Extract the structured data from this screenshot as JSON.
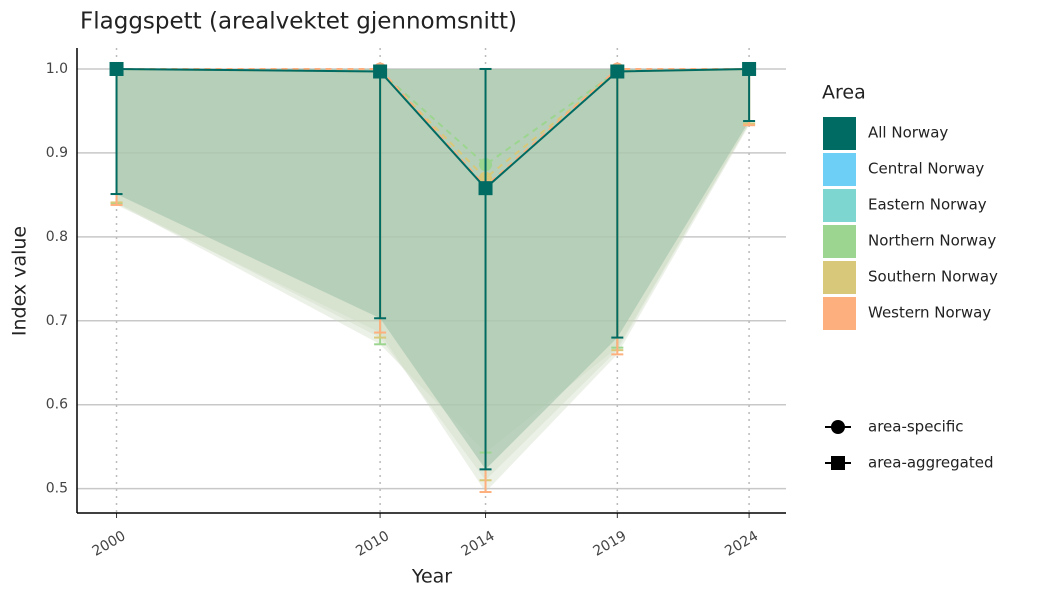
{
  "chart_data": {
    "type": "line",
    "title": "Flaggspett (arealvektet gjennomsnitt)",
    "x_label": "Year",
    "y_label": "Index value",
    "x": [
      2000,
      2010,
      2014,
      2019,
      2024
    ],
    "xlim": [
      1998.5,
      2025.4
    ],
    "xticks": [
      2000,
      2010,
      2014,
      2019,
      2024
    ],
    "ylim": [
      0.471,
      1.025
    ],
    "yticks": [
      0.5,
      0.6,
      0.7,
      0.8,
      0.9,
      {
        "value": 1,
        "label": "1.0"
      }
    ],
    "grid": true,
    "legend_title": "Area",
    "shape_legend": [
      "area-specific",
      "area-aggregated"
    ],
    "series": [
      {
        "name": "All Norway",
        "color": "#006b62",
        "shape": "area-aggregated",
        "values": [
          1.0,
          0.997,
          0.858,
          0.997,
          1.0
        ],
        "lower": [
          0.851,
          0.703,
          0.523,
          0.68,
          0.938
        ],
        "upper": [
          1.0,
          1.0,
          1.0,
          1.0,
          1.0
        ]
      },
      {
        "name": "Central Norway",
        "color": "#6ecff6",
        "shape": "area-specific",
        "values": [
          null,
          null,
          null,
          null,
          null
        ],
        "lower": [
          null,
          null,
          null,
          null,
          null
        ],
        "upper": [
          null,
          null,
          null,
          null,
          null
        ]
      },
      {
        "name": "Eastern Norway",
        "color": "#7dd6cf",
        "shape": "area-specific",
        "values": [
          null,
          null,
          null,
          null,
          null
        ],
        "lower": [
          null,
          null,
          null,
          null,
          null
        ],
        "upper": [
          null,
          null,
          null,
          null,
          null
        ]
      },
      {
        "name": "Northern Norway",
        "color": "#9cd58f",
        "shape": "area-specific",
        "values": [
          1.0,
          0.997,
          0.886,
          0.997,
          1.0
        ],
        "lower": [
          0.84,
          0.672,
          0.543,
          0.668,
          0.935
        ],
        "upper": [
          1.0,
          1.0,
          1.0,
          1.0,
          1.0
        ]
      },
      {
        "name": "Southern Norway",
        "color": "#d7c87a",
        "shape": "area-specific",
        "values": [
          1.0,
          0.997,
          0.87,
          0.997,
          1.0
        ],
        "lower": [
          0.841,
          0.68,
          0.51,
          0.665,
          0.935
        ],
        "upper": [
          1.0,
          1.0,
          1.0,
          1.0,
          1.0
        ]
      },
      {
        "name": "Western Norway",
        "color": "#fdb07e",
        "shape": "area-specific",
        "values": [
          1.0,
          1.0,
          0.86,
          1.0,
          1.0
        ],
        "lower": [
          0.838,
          0.686,
          0.496,
          0.66,
          0.933
        ],
        "upper": [
          1.0,
          1.0,
          1.0,
          1.0,
          1.0
        ]
      }
    ]
  }
}
